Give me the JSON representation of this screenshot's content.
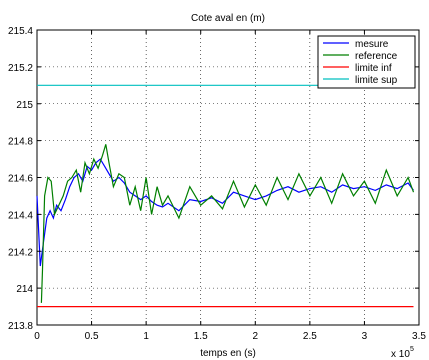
{
  "chart_data": {
    "type": "line",
    "title": "Cote aval en (m)",
    "xlabel": "temps en (s)",
    "ylabel": "",
    "x_multiplier_label": "x 10",
    "x_multiplier_exponent": "5",
    "xlim": [
      0,
      3.5
    ],
    "ylim": [
      213.8,
      215.4
    ],
    "xticks": [
      "0",
      "0.5",
      "1",
      "1.5",
      "2",
      "2.5",
      "3",
      "3.5"
    ],
    "yticks": [
      "213.8",
      "214",
      "214.2",
      "214.4",
      "214.6",
      "214.8",
      "215",
      "215.2",
      "215.4"
    ],
    "grid": "dotted",
    "legend_position": "top-right",
    "x_scale_note": "x values in units of 1e5 s",
    "series": [
      {
        "name": "mesure",
        "color": "#0000ff",
        "x": [
          0,
          0.03,
          0.06,
          0.09,
          0.12,
          0.15,
          0.18,
          0.22,
          0.26,
          0.3,
          0.34,
          0.38,
          0.42,
          0.46,
          0.5,
          0.54,
          0.58,
          0.62,
          0.66,
          0.7,
          0.75,
          0.8,
          0.85,
          0.9,
          0.95,
          1.0,
          1.05,
          1.1,
          1.15,
          1.2,
          1.3,
          1.4,
          1.5,
          1.6,
          1.7,
          1.8,
          1.9,
          2.0,
          2.1,
          2.2,
          2.3,
          2.4,
          2.5,
          2.6,
          2.7,
          2.8,
          2.9,
          3.0,
          3.1,
          3.2,
          3.3,
          3.4,
          3.45
        ],
        "y": [
          214.5,
          214.12,
          214.25,
          214.38,
          214.42,
          214.38,
          214.45,
          214.42,
          214.48,
          214.55,
          214.6,
          214.62,
          214.58,
          214.66,
          214.64,
          214.68,
          214.7,
          214.66,
          214.62,
          214.58,
          214.6,
          214.57,
          214.52,
          214.5,
          214.48,
          214.5,
          214.47,
          214.45,
          214.44,
          214.46,
          214.42,
          214.48,
          214.47,
          214.49,
          214.46,
          214.52,
          214.5,
          214.48,
          214.5,
          214.53,
          214.55,
          214.52,
          214.54,
          214.55,
          214.52,
          214.56,
          214.54,
          214.55,
          214.53,
          214.56,
          214.54,
          214.57,
          214.53
        ]
      },
      {
        "name": "reference",
        "color": "#007f00",
        "x": [
          0.04,
          0.05,
          0.07,
          0.1,
          0.13,
          0.16,
          0.2,
          0.24,
          0.28,
          0.32,
          0.36,
          0.4,
          0.44,
          0.48,
          0.52,
          0.56,
          0.6,
          0.63,
          0.66,
          0.7,
          0.75,
          0.8,
          0.85,
          0.9,
          0.95,
          1.0,
          1.05,
          1.1,
          1.15,
          1.2,
          1.3,
          1.4,
          1.5,
          1.6,
          1.7,
          1.8,
          1.9,
          2.0,
          2.1,
          2.2,
          2.3,
          2.4,
          2.5,
          2.6,
          2.7,
          2.8,
          2.9,
          3.0,
          3.1,
          3.2,
          3.3,
          3.4,
          3.45
        ],
        "y": [
          213.92,
          214.1,
          214.5,
          214.6,
          214.58,
          214.4,
          214.45,
          214.5,
          214.58,
          214.6,
          214.64,
          214.52,
          214.68,
          214.62,
          214.7,
          214.65,
          214.72,
          214.78,
          214.68,
          214.55,
          214.62,
          214.6,
          214.45,
          214.55,
          214.42,
          214.6,
          214.4,
          214.55,
          214.45,
          214.5,
          214.38,
          214.55,
          214.45,
          214.5,
          214.43,
          214.58,
          214.44,
          214.56,
          214.45,
          214.6,
          214.48,
          214.62,
          214.5,
          214.6,
          214.46,
          214.62,
          214.5,
          214.58,
          214.46,
          214.64,
          214.5,
          214.6,
          214.52
        ]
      },
      {
        "name": "limite inf",
        "color": "#ff0000",
        "x": [
          0,
          3.45
        ],
        "y": [
          213.9,
          213.9
        ]
      },
      {
        "name": "limite sup",
        "color": "#00bfbf",
        "x": [
          0,
          3.45
        ],
        "y": [
          215.1,
          215.1
        ]
      }
    ]
  }
}
